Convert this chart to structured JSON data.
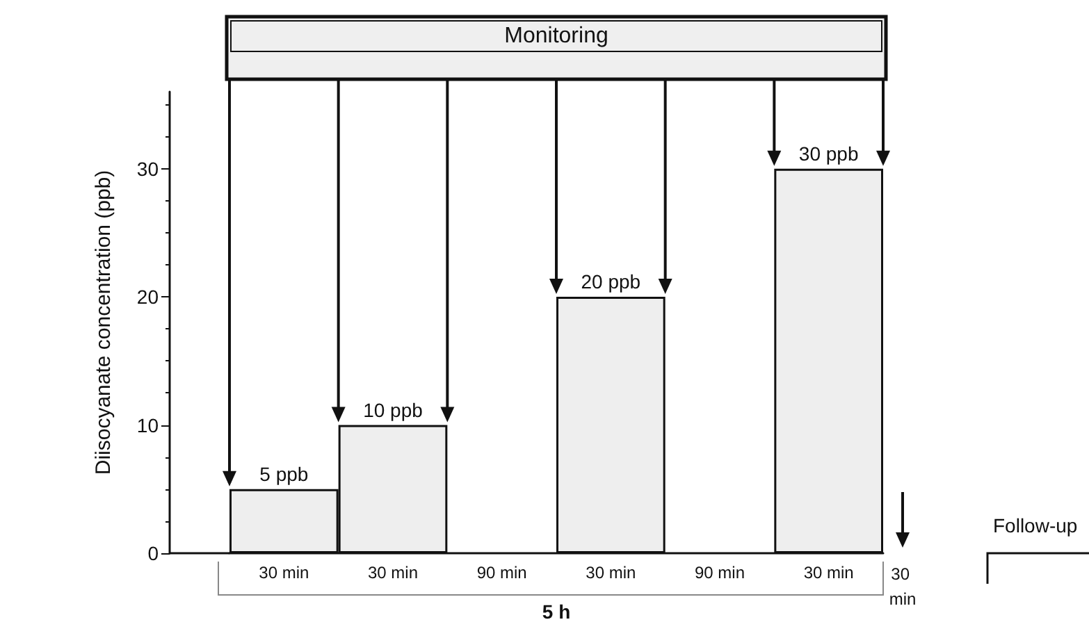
{
  "chart_data": {
    "type": "bar",
    "ylabel": "Diisocyanate concentration (ppb)",
    "categories": [
      "30 min",
      "30 min",
      "90 min",
      "30 min",
      "90 min",
      "30 min"
    ],
    "values": [
      5,
      10,
      null,
      20,
      null,
      30
    ],
    "value_labels": [
      "5 ppb",
      "10 ppb",
      null,
      "20 ppb",
      null,
      "30 ppb"
    ],
    "color": "#eeeeee",
    "ylim": [
      0,
      36
    ],
    "yticks": [
      0,
      10,
      20,
      30
    ],
    "grid": false,
    "annotations": [
      "Monitoring",
      "5 h",
      "30 min",
      "Follow-up"
    ]
  }
}
